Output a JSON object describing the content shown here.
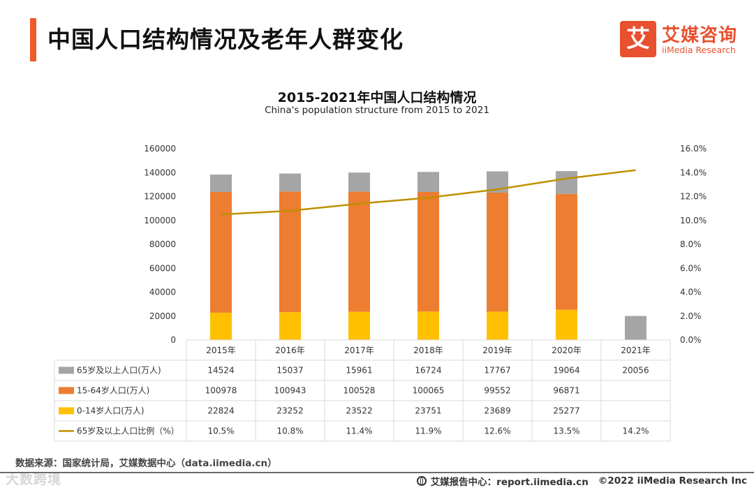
{
  "header": {
    "title": "中国人口结构情况及老年人群变化",
    "accent_color": "#f05a28"
  },
  "logo": {
    "mark": "艾",
    "name_cn": "艾媒咨询",
    "name_en": "iiMedia Research",
    "color": "#e8502e"
  },
  "chart_data": {
    "type": "bar",
    "stacked": true,
    "title": "2015-2021年中国人口结构情况",
    "subtitle": "China's population structure from 2015 to 2021",
    "categories": [
      "2015年",
      "2016年",
      "2017年",
      "2018年",
      "2019年",
      "2020年",
      "2021年"
    ],
    "series": [
      {
        "name": "0-14岁人口(万人)",
        "color": "#ffc000",
        "values": [
          22824,
          23252,
          23522,
          23751,
          23689,
          25277,
          null
        ],
        "labels": [
          "22824",
          "23252",
          "23522",
          "23751",
          "23689",
          "25277",
          ""
        ]
      },
      {
        "name": "15-64岁人口(万人)",
        "color": "#ed7d31",
        "values": [
          100978,
          100943,
          100528,
          100065,
          99552,
          96871,
          null
        ],
        "labels": [
          "100978",
          "100943",
          "100528",
          "100065",
          "99552",
          "96871",
          ""
        ]
      },
      {
        "name": "65岁及以上人口(万人)",
        "color": "#a5a5a5",
        "values": [
          14524,
          15037,
          15961,
          16724,
          17767,
          19064,
          20056
        ],
        "labels": [
          "14524",
          "15037",
          "15961",
          "16724",
          "17767",
          "19064",
          "20056"
        ]
      }
    ],
    "line_series": {
      "name": "65岁及以上人口比例（%）",
      "color": "#bf9000",
      "values": [
        10.5,
        10.8,
        11.4,
        11.9,
        12.6,
        13.5,
        14.2
      ],
      "labels": [
        "10.5%",
        "10.8%",
        "11.4%",
        "11.9%",
        "12.6%",
        "13.5%",
        "14.2%"
      ]
    },
    "table_row_order": [
      2,
      1,
      0
    ],
    "y_left": {
      "min": 0,
      "max": 160000,
      "ticks": [
        "0",
        "20000",
        "40000",
        "60000",
        "80000",
        "100000",
        "120000",
        "140000",
        "160000"
      ]
    },
    "y_right": {
      "min": 0,
      "max": 16,
      "ticks": [
        "0.0%",
        "2.0%",
        "4.0%",
        "6.0%",
        "8.0%",
        "10.0%",
        "12.0%",
        "14.0%",
        "16.0%"
      ]
    },
    "grid": false,
    "legend_placement": "data-table"
  },
  "footer": {
    "source": "数据来源：国家统计局，艾媒数据中心（data.iimedia.cn）",
    "report_center": "艾媒报告中心：report.iimedia.cn",
    "copyright": "©2022  iiMedia Research  Inc",
    "watermark": "大数跨境"
  }
}
